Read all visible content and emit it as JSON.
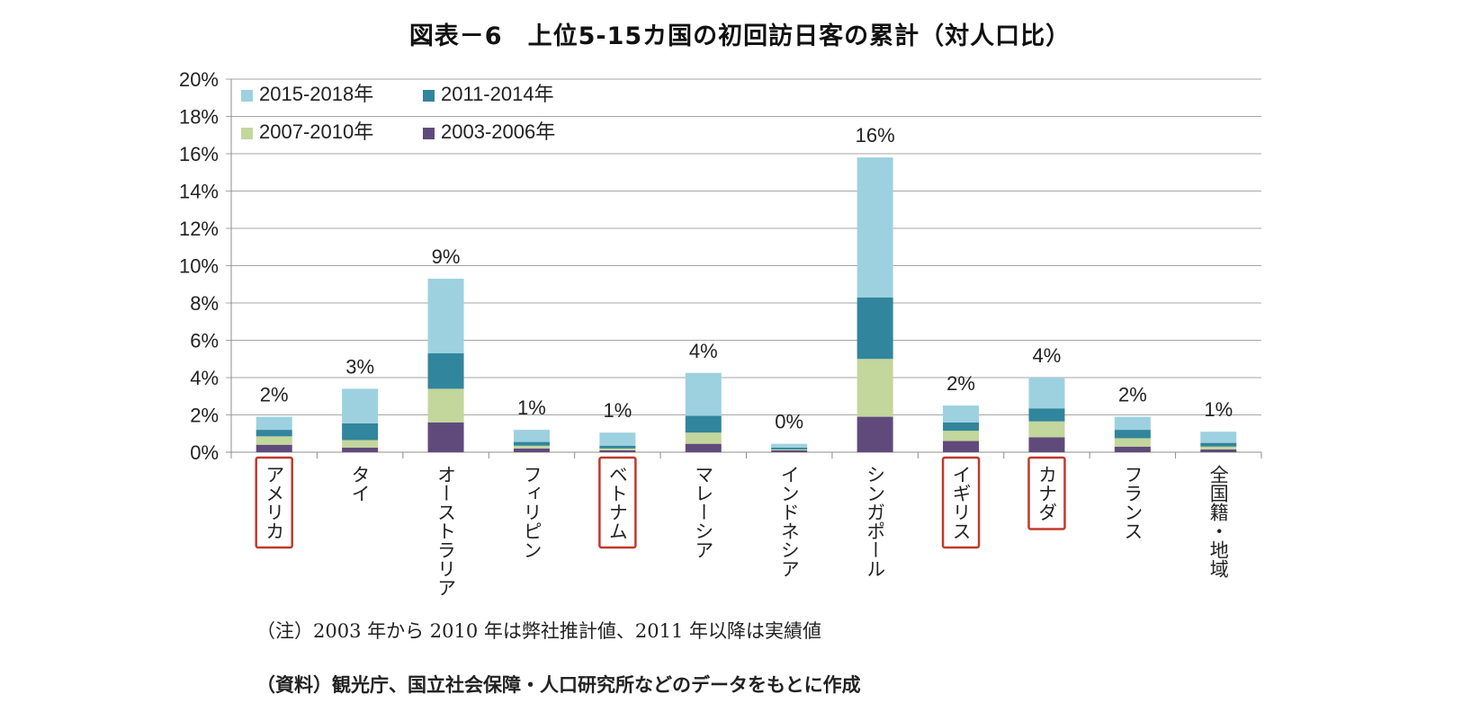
{
  "title": "図表－6　上位5-15カ国の初回訪日客の累計（対人口比）",
  "note": "（注）2003 年から 2010 年は弊社推計値、2011 年以降は実績値",
  "source": "（資料）観光庁、国立社会保障・人口研究所などのデータをもとに作成",
  "colors": {
    "s2015": "#9dd1e0",
    "s2011": "#31859c",
    "s2007": "#c3d69b",
    "s2003": "#604a7b",
    "highlight": "#c0392b",
    "grid": "#a6a6a6"
  },
  "chart_data": {
    "type": "bar",
    "stacked": true,
    "title": "図表－6　上位5-15カ国の初回訪日客の累計（対人口比）",
    "ylim": [
      0,
      20
    ],
    "yticks": [
      "0%",
      "2%",
      "4%",
      "6%",
      "8%",
      "10%",
      "12%",
      "14%",
      "16%",
      "18%",
      "20%"
    ],
    "grid": true,
    "legend_position": "top-left",
    "categories": [
      "アメリカ",
      "タイ",
      "オーストラリア",
      "フィリピン",
      "ベトナム",
      "マレーシア",
      "インドネシア",
      "シンガポール",
      "イギリス",
      "カナダ",
      "フランス",
      "全国籍・地域"
    ],
    "highlighted": [
      "アメリカ",
      "ベトナム",
      "イギリス",
      "カナダ"
    ],
    "series": [
      {
        "name": "2003-2006年",
        "key": "s2003",
        "values": [
          0.4,
          0.25,
          1.6,
          0.2,
          0.1,
          0.45,
          0.1,
          1.9,
          0.6,
          0.8,
          0.3,
          0.15
        ]
      },
      {
        "name": "2007-2010年",
        "key": "s2007",
        "values": [
          0.45,
          0.4,
          1.8,
          0.15,
          0.1,
          0.6,
          0.05,
          3.1,
          0.55,
          0.85,
          0.45,
          0.15
        ]
      },
      {
        "name": "2011-2014年",
        "key": "s2011",
        "values": [
          0.35,
          0.9,
          1.9,
          0.2,
          0.15,
          0.9,
          0.1,
          3.3,
          0.45,
          0.7,
          0.45,
          0.2
        ]
      },
      {
        "name": "2015-2018年",
        "key": "s2015",
        "values": [
          0.7,
          1.85,
          4.0,
          0.65,
          0.7,
          2.3,
          0.2,
          7.5,
          0.9,
          1.65,
          0.7,
          0.6
        ]
      }
    ],
    "totals_labels": [
      "2%",
      "3%",
      "9%",
      "1%",
      "1%",
      "4%",
      "0%",
      "16%",
      "2%",
      "4%",
      "2%",
      "1%"
    ],
    "legend": [
      {
        "name": "2015-2018年",
        "key": "s2015"
      },
      {
        "name": "2011-2014年",
        "key": "s2011"
      },
      {
        "name": "2007-2010年",
        "key": "s2007"
      },
      {
        "name": "2003-2006年",
        "key": "s2003"
      }
    ]
  }
}
